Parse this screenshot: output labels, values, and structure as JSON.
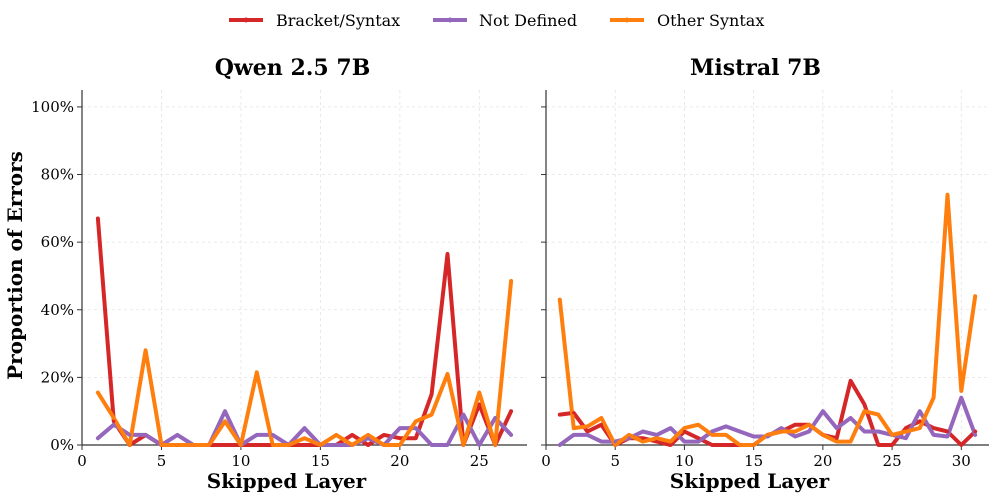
{
  "legend": [
    {
      "name": "Bracket/Syntax",
      "color": "#d62728"
    },
    {
      "name": "Not Defined",
      "color": "#9467bd"
    },
    {
      "name": "Other Syntax",
      "color": "#ff7f0e"
    }
  ],
  "chart_data": [
    {
      "type": "line",
      "title": "Qwen 2.5 7B",
      "xlabel": "Skipped Layer",
      "ylabel": "Proportion of Errors",
      "xlim": [
        0,
        28
      ],
      "ylim": [
        0,
        105
      ],
      "xticks": [
        0,
        5,
        10,
        15,
        20,
        25
      ],
      "yticks": [
        0,
        20,
        40,
        60,
        80,
        100
      ],
      "ytick_labels": [
        "0%",
        "20%",
        "40%",
        "60%",
        "80%",
        "100%"
      ],
      "grid": true,
      "series": [
        {
          "name": "Bracket/Syntax",
          "color": "#d62728",
          "x": [
            1,
            2,
            3,
            4,
            5,
            6,
            7,
            8,
            9,
            10,
            11,
            12,
            13,
            14,
            15,
            16,
            17,
            18,
            19,
            20,
            21,
            22,
            23,
            24,
            25,
            26,
            27
          ],
          "y": [
            67,
            7,
            0,
            3,
            0,
            0,
            0,
            0,
            0,
            0,
            0,
            0,
            0,
            0,
            0,
            0,
            3,
            0,
            3,
            2,
            2,
            15,
            56.5,
            0,
            12,
            0,
            10
          ]
        },
        {
          "name": "Not Defined",
          "color": "#9467bd",
          "x": [
            1,
            2,
            3,
            4,
            5,
            6,
            7,
            8,
            9,
            10,
            11,
            12,
            13,
            14,
            15,
            16,
            17,
            18,
            19,
            20,
            21,
            22,
            23,
            24,
            25,
            26,
            27
          ],
          "y": [
            2,
            6,
            3,
            3,
            0,
            3,
            0,
            0,
            10,
            0,
            3,
            3,
            0,
            5,
            0,
            0,
            0,
            2,
            0,
            5,
            5,
            0,
            0,
            9,
            0,
            8,
            3
          ]
        },
        {
          "name": "Other Syntax",
          "color": "#ff7f0e",
          "x": [
            1,
            2,
            3,
            4,
            5,
            6,
            7,
            8,
            9,
            10,
            11,
            12,
            13,
            14,
            15,
            16,
            17,
            18,
            19,
            20,
            21,
            22,
            23,
            24,
            25,
            26,
            27
          ],
          "y": [
            15.5,
            8,
            0,
            28,
            0,
            0,
            0,
            0,
            7,
            0,
            21.5,
            0,
            0,
            2,
            0,
            3,
            0,
            3,
            0,
            0,
            7,
            9,
            21,
            0,
            15.5,
            0,
            48.5
          ]
        }
      ]
    },
    {
      "type": "line",
      "title": "Mistral 7B",
      "xlabel": "Skipped Layer",
      "ylabel": "",
      "xlim": [
        0,
        32
      ],
      "ylim": [
        0,
        105
      ],
      "xticks": [
        0,
        5,
        10,
        15,
        20,
        25,
        30
      ],
      "yticks": [
        0,
        20,
        40,
        60,
        80,
        100
      ],
      "grid": true,
      "series": [
        {
          "name": "Bracket/Syntax",
          "color": "#d62728",
          "x": [
            1,
            2,
            3,
            4,
            5,
            6,
            7,
            8,
            9,
            10,
            11,
            12,
            13,
            14,
            15,
            16,
            17,
            18,
            19,
            20,
            21,
            22,
            23,
            24,
            25,
            26,
            27,
            28,
            29,
            30,
            31
          ],
          "y": [
            9,
            9.5,
            4,
            6,
            0,
            2,
            2,
            1,
            0,
            4,
            2,
            0,
            0,
            0,
            0,
            3,
            4,
            6,
            6,
            3,
            2,
            19,
            12,
            0,
            0,
            5,
            7,
            5,
            4,
            0,
            4
          ]
        },
        {
          "name": "Not Defined",
          "color": "#9467bd",
          "x": [
            1,
            2,
            3,
            4,
            5,
            6,
            7,
            8,
            9,
            10,
            11,
            12,
            13,
            14,
            15,
            16,
            17,
            18,
            19,
            20,
            21,
            22,
            23,
            24,
            25,
            26,
            27,
            28,
            29,
            30,
            31
          ],
          "y": [
            0,
            3,
            3,
            1,
            1,
            2,
            4,
            3,
            5,
            1,
            1,
            4,
            5.5,
            4,
            2.5,
            2.5,
            5,
            2.5,
            4,
            10,
            5,
            8,
            4,
            4,
            3,
            2,
            10,
            3,
            2.5,
            14,
            3
          ]
        },
        {
          "name": "Other Syntax",
          "color": "#ff7f0e",
          "x": [
            1,
            2,
            3,
            4,
            5,
            6,
            7,
            8,
            9,
            10,
            11,
            12,
            13,
            14,
            15,
            16,
            17,
            18,
            19,
            20,
            21,
            22,
            23,
            24,
            25,
            26,
            27,
            28,
            29,
            30,
            31
          ],
          "y": [
            43,
            5,
            5.5,
            8,
            0,
            3,
            1,
            2,
            1,
            5,
            6,
            3,
            3,
            0,
            0,
            3,
            4,
            4,
            6,
            3,
            1,
            1,
            10,
            9,
            3,
            4,
            5,
            14,
            74,
            16,
            44
          ]
        }
      ]
    }
  ]
}
